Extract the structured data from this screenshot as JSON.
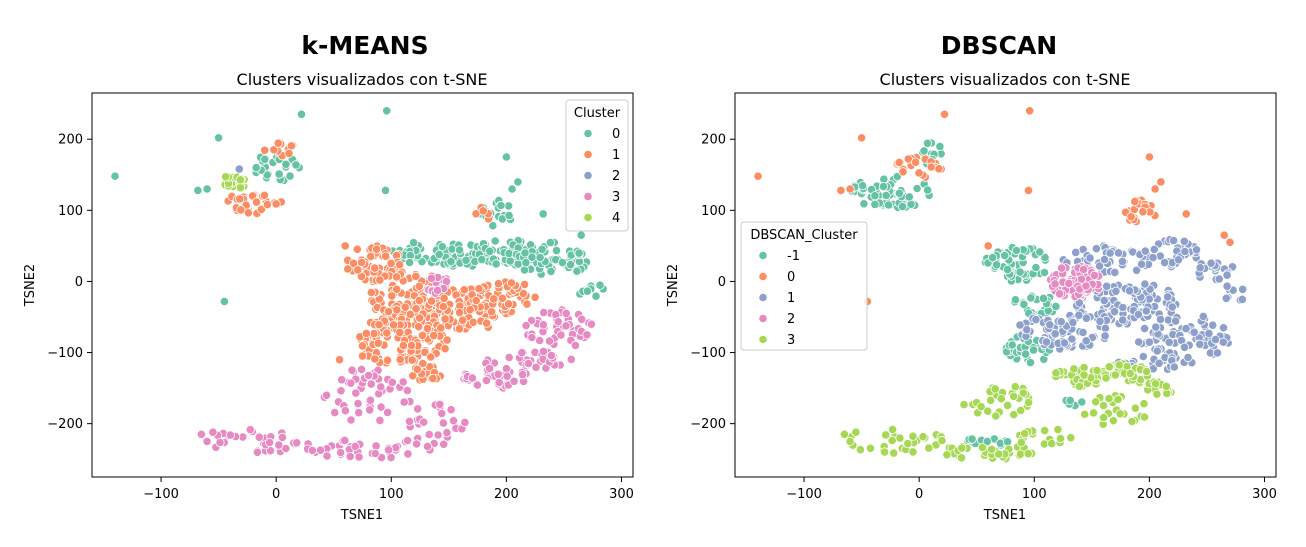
{
  "chart_data": [
    {
      "type": "scatter",
      "title": "k-MEANS",
      "subtitle": "Clusters visualizados con t-SNE",
      "xlabel": "TSNE1",
      "ylabel": "TSNE2",
      "xlim": [
        -160,
        310
      ],
      "ylim": [
        -275,
        265
      ],
      "xticks": [
        -100,
        0,
        100,
        200,
        300
      ],
      "yticks": [
        -200,
        -100,
        0,
        100,
        200
      ],
      "xtick_labels": [
        "−100",
        "0",
        "100",
        "200",
        "300"
      ],
      "ytick_labels": [
        "−200",
        "−100",
        "0",
        "100",
        "200"
      ],
      "grid": false,
      "legend_title": "Cluster",
      "legend_position": "top-right",
      "series": [
        {
          "name": "0",
          "color": "#66c2a5",
          "regions": [
            {
              "cx": 125,
              "cy": 40,
              "rx": 28,
              "ry": 15,
              "n": 35
            },
            {
              "cx": 160,
              "cy": 35,
              "rx": 25,
              "ry": 18,
              "n": 40
            },
            {
              "cx": 200,
              "cy": 40,
              "rx": 28,
              "ry": 20,
              "n": 55
            },
            {
              "cx": 240,
              "cy": 30,
              "rx": 30,
              "ry": 25,
              "n": 50
            },
            {
              "cx": 190,
              "cy": 95,
              "rx": 15,
              "ry": 20,
              "n": 20
            },
            {
              "cx": 0,
              "cy": 160,
              "rx": 20,
              "ry": 20,
              "n": 25
            },
            {
              "cx": 275,
              "cy": -15,
              "rx": 12,
              "ry": 12,
              "n": 8
            }
          ],
          "points": [
            [
              -140,
              148
            ],
            [
              -50,
              202
            ],
            [
              22,
              235
            ],
            [
              96,
              240
            ],
            [
              95,
              128
            ],
            [
              -45,
              -28
            ],
            [
              -68,
              128
            ],
            [
              -60,
              130
            ],
            [
              200,
              175
            ],
            [
              232,
              95
            ],
            [
              265,
              65
            ],
            [
              210,
              140
            ],
            [
              205,
              130
            ]
          ]
        },
        {
          "name": "1",
          "color": "#fc8d62",
          "regions": [
            {
              "cx": 85,
              "cy": 25,
              "rx": 25,
              "ry": 25,
              "n": 55
            },
            {
              "cx": 115,
              "cy": -20,
              "rx": 35,
              "ry": 35,
              "n": 90
            },
            {
              "cx": 160,
              "cy": -40,
              "rx": 45,
              "ry": 30,
              "n": 110
            },
            {
              "cx": 200,
              "cy": -20,
              "rx": 28,
              "ry": 20,
              "n": 40
            },
            {
              "cx": 110,
              "cy": -85,
              "rx": 40,
              "ry": 40,
              "n": 120
            },
            {
              "cx": 130,
              "cy": -130,
              "rx": 15,
              "ry": 15,
              "n": 20
            },
            {
              "cx": -20,
              "cy": 110,
              "rx": 25,
              "ry": 15,
              "n": 30
            },
            {
              "cx": 5,
              "cy": 185,
              "rx": 15,
              "ry": 10,
              "n": 12
            },
            {
              "cx": 180,
              "cy": 95,
              "rx": 8,
              "ry": 12,
              "n": 6
            }
          ],
          "points": [
            [
              60,
              50
            ],
            [
              55,
              -110
            ],
            [
              75,
              -105
            ]
          ]
        },
        {
          "name": "2",
          "color": "#8da0cb",
          "regions": [],
          "points": [
            [
              -32,
              158
            ]
          ]
        },
        {
          "name": "3",
          "color": "#e78ac3",
          "regions": [
            {
              "cx": 140,
              "cy": -5,
              "rx": 12,
              "ry": 12,
              "n": 14
            },
            {
              "cx": 245,
              "cy": -65,
              "rx": 30,
              "ry": 25,
              "n": 45
            },
            {
              "cx": 230,
              "cy": -110,
              "rx": 30,
              "ry": 12,
              "n": 25
            },
            {
              "cx": 190,
              "cy": -130,
              "rx": 30,
              "ry": 22,
              "n": 35
            },
            {
              "cx": 80,
              "cy": -160,
              "rx": 40,
              "ry": 40,
              "n": 45
            },
            {
              "cx": 140,
              "cy": -200,
              "rx": 25,
              "ry": 30,
              "n": 25
            },
            {
              "cx": 80,
              "cy": -235,
              "rx": 60,
              "ry": 14,
              "n": 40
            },
            {
              "cx": -20,
              "cy": -225,
              "rx": 45,
              "ry": 18,
              "n": 28
            }
          ],
          "points": [
            [
              -65,
              -215
            ],
            [
              -60,
              -225
            ],
            [
              -55,
              -212
            ],
            [
              260,
              -90
            ],
            [
              270,
              -75
            ]
          ]
        },
        {
          "name": "4",
          "color": "#a6d854",
          "regions": [
            {
              "cx": -37,
              "cy": 140,
              "rx": 12,
              "ry": 10,
              "n": 18
            }
          ],
          "points": []
        }
      ]
    },
    {
      "type": "scatter",
      "title": "DBSCAN",
      "subtitle": "Clusters visualizados con t-SNE",
      "xlabel": "TSNE1",
      "ylabel": "TSNE2",
      "xlim": [
        -160,
        310
      ],
      "ylim": [
        -275,
        265
      ],
      "xticks": [
        -100,
        0,
        100,
        200,
        300
      ],
      "yticks": [
        -200,
        -100,
        0,
        100,
        200
      ],
      "xtick_labels": [
        "−100",
        "0",
        "100",
        "200",
        "300"
      ],
      "ytick_labels": [
        "−200",
        "−100",
        "0",
        "100",
        "200"
      ],
      "grid": false,
      "legend_title": "DBSCAN_Cluster",
      "legend_position": "center-left",
      "series": [
        {
          "name": "-1",
          "color": "#66c2a5",
          "regions": [
            {
              "cx": 85,
              "cy": 25,
              "rx": 28,
              "ry": 25,
              "n": 55
            },
            {
              "cx": 100,
              "cy": -35,
              "rx": 20,
              "ry": 18,
              "n": 25
            },
            {
              "cx": 95,
              "cy": -95,
              "rx": 20,
              "ry": 20,
              "n": 40
            },
            {
              "cx": -25,
              "cy": 125,
              "rx": 35,
              "ry": 25,
              "n": 55
            },
            {
              "cx": 10,
              "cy": 180,
              "rx": 15,
              "ry": 15,
              "n": 15
            },
            {
              "cx": 60,
              "cy": -225,
              "rx": 20,
              "ry": 6,
              "n": 12
            },
            {
              "cx": 135,
              "cy": -170,
              "rx": 10,
              "ry": 5,
              "n": 8
            }
          ],
          "points": []
        },
        {
          "name": "0",
          "color": "#fc8d62",
          "regions": [
            {
              "cx": 0,
              "cy": 160,
              "rx": 20,
              "ry": 20,
              "n": 22
            },
            {
              "cx": 190,
              "cy": 95,
              "rx": 15,
              "ry": 20,
              "n": 18
            }
          ],
          "points": [
            [
              -140,
              148
            ],
            [
              -50,
              202
            ],
            [
              22,
              235
            ],
            [
              96,
              240
            ],
            [
              95,
              128
            ],
            [
              -45,
              -28
            ],
            [
              -68,
              128
            ],
            [
              -60,
              130
            ],
            [
              200,
              175
            ],
            [
              232,
              95
            ],
            [
              265,
              65
            ],
            [
              210,
              140
            ],
            [
              205,
              130
            ],
            [
              270,
              55
            ],
            [
              60,
              50
            ]
          ]
        },
        {
          "name": "1",
          "color": "#8da0cb",
          "regions": [
            {
              "cx": 165,
              "cy": 30,
              "rx": 40,
              "ry": 20,
              "n": 55
            },
            {
              "cx": 220,
              "cy": 40,
              "rx": 25,
              "ry": 20,
              "n": 35
            },
            {
              "cx": 255,
              "cy": 15,
              "rx": 20,
              "ry": 15,
              "n": 20
            },
            {
              "cx": 180,
              "cy": -30,
              "rx": 45,
              "ry": 30,
              "n": 110
            },
            {
              "cx": 125,
              "cy": -70,
              "rx": 40,
              "ry": 25,
              "n": 80
            },
            {
              "cx": 230,
              "cy": -80,
              "rx": 40,
              "ry": 35,
              "n": 80
            },
            {
              "cx": 200,
              "cy": -115,
              "rx": 30,
              "ry": 10,
              "n": 20
            },
            {
              "cx": 275,
              "cy": -15,
              "rx": 12,
              "ry": 12,
              "n": 8
            }
          ],
          "points": []
        },
        {
          "name": "2",
          "color": "#e78ac3",
          "regions": [
            {
              "cx": 135,
              "cy": 0,
              "rx": 25,
              "ry": 22,
              "n": 75
            }
          ],
          "points": []
        },
        {
          "name": "3",
          "color": "#a6d854",
          "regions": [
            {
              "cx": 140,
              "cy": -135,
              "rx": 25,
              "ry": 15,
              "n": 40
            },
            {
              "cx": 180,
              "cy": -130,
              "rx": 20,
              "ry": 15,
              "n": 30
            },
            {
              "cx": 210,
              "cy": -150,
              "rx": 15,
              "ry": 10,
              "n": 15
            },
            {
              "cx": 70,
              "cy": -170,
              "rx": 35,
              "ry": 25,
              "n": 30
            },
            {
              "cx": 170,
              "cy": -185,
              "rx": 30,
              "ry": 25,
              "n": 25
            },
            {
              "cx": 60,
              "cy": -240,
              "rx": 45,
              "ry": 10,
              "n": 30
            },
            {
              "cx": -20,
              "cy": -225,
              "rx": 45,
              "ry": 18,
              "n": 28
            },
            {
              "cx": 110,
              "cy": -220,
              "rx": 25,
              "ry": 15,
              "n": 15
            }
          ],
          "points": [
            [
              -65,
              -215
            ],
            [
              -60,
              -225
            ],
            [
              -55,
              -212
            ]
          ]
        }
      ]
    }
  ]
}
